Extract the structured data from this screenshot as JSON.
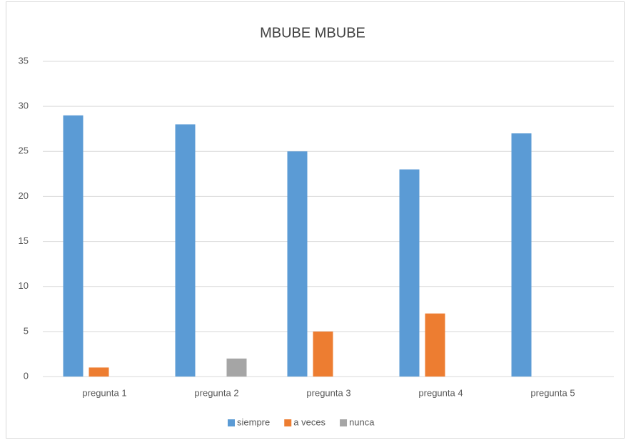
{
  "chart_data": {
    "type": "bar",
    "title": "MBUBE MBUBE",
    "categories": [
      "pregunta 1",
      "pregunta 2",
      "pregunta 3",
      "pregunta 4",
      "pregunta 5"
    ],
    "series": [
      {
        "name": "siempre",
        "color": "#5b9bd5",
        "values": [
          29,
          28,
          25,
          23,
          27
        ]
      },
      {
        "name": "a veces",
        "color": "#ed7d31",
        "values": [
          1,
          0,
          5,
          7,
          0
        ]
      },
      {
        "name": "nunca",
        "color": "#a5a5a5",
        "values": [
          0,
          2,
          0,
          0,
          0
        ]
      }
    ],
    "ylim": [
      0,
      35
    ],
    "yticks": [
      0,
      5,
      10,
      15,
      20,
      25,
      30,
      35
    ],
    "grid": true,
    "legend": "bottom"
  }
}
